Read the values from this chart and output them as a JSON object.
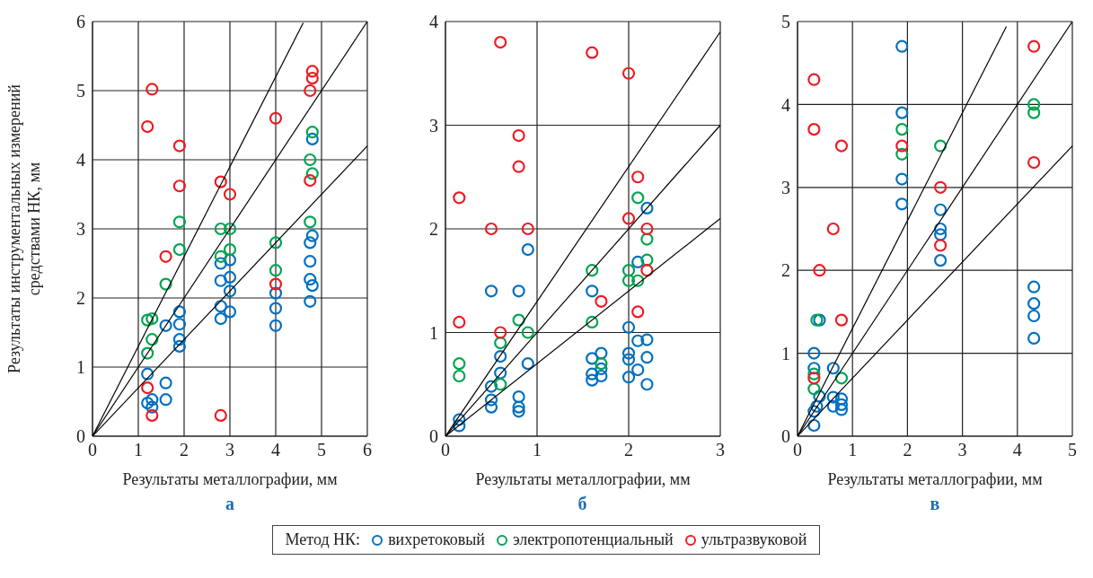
{
  "chart_data": [
    {
      "type": "scatter",
      "title": "а",
      "xlabel": "Результаты металлографии, мм",
      "ylabel": "Результаты инструментальных измерений средствами НК, мм",
      "xlim": [
        0,
        6
      ],
      "ylim": [
        0,
        6
      ],
      "xticks": [
        0,
        1,
        2,
        3,
        4,
        5,
        6
      ],
      "yticks": [
        0,
        1,
        2,
        3,
        4,
        5,
        6
      ],
      "grid": true,
      "legend": false,
      "series": [
        {
          "color": "#0070c0",
          "marker": "circle",
          "x": [
            4.8,
            4.8,
            4.75,
            4.75,
            4.75,
            4.8,
            4.75,
            2.8,
            3.0,
            2.8,
            3.0,
            3.0,
            2.8,
            3.0,
            2.8,
            4.0,
            4.0,
            4.0,
            1.9,
            1.9,
            1.6,
            1.9,
            1.9,
            1.2,
            1.6,
            1.2,
            1.3,
            1.3,
            1.6
          ],
          "values": [
            4.3,
            2.9,
            2.8,
            2.53,
            2.27,
            2.18,
            1.95,
            2.5,
            2.55,
            2.25,
            2.3,
            2.1,
            1.88,
            1.8,
            1.7,
            2.07,
            1.85,
            1.6,
            1.8,
            1.62,
            1.6,
            1.4,
            1.3,
            0.9,
            0.77,
            0.48,
            0.53,
            0.42,
            0.53
          ]
        },
        {
          "color": "#00a550",
          "marker": "circle",
          "x": [
            4.8,
            4.75,
            4.8,
            4.75,
            1.9,
            1.9,
            2.8,
            3.0,
            3.0,
            2.8,
            4.0,
            4.0,
            1.6,
            1.2,
            1.3,
            1.3,
            1.2
          ],
          "values": [
            4.4,
            4.0,
            3.8,
            3.1,
            3.1,
            2.7,
            3.0,
            3.0,
            2.7,
            2.6,
            2.8,
            2.4,
            2.2,
            1.68,
            1.7,
            1.4,
            1.2
          ]
        },
        {
          "color": "#ed1c24",
          "marker": "circle",
          "x": [
            1.3,
            1.2,
            1.9,
            1.9,
            2.8,
            3.0,
            4.0,
            4.8,
            4.8,
            4.75,
            4.75,
            1.6,
            4.0,
            1.2,
            1.3,
            2.8
          ],
          "values": [
            5.02,
            4.48,
            4.2,
            3.62,
            3.68,
            3.5,
            4.6,
            5.28,
            5.18,
            5.0,
            3.7,
            2.6,
            2.2,
            0.7,
            0.3,
            0.3
          ]
        },
        {
          "type": "line",
          "color": "#000000",
          "x": [
            0,
            4.6
          ],
          "values": [
            0,
            5.98
          ]
        },
        {
          "type": "line",
          "color": "#000000",
          "x": [
            0,
            6
          ],
          "values": [
            0,
            6
          ]
        },
        {
          "type": "line",
          "color": "#000000",
          "x": [
            0,
            6
          ],
          "values": [
            0,
            4.2
          ]
        }
      ]
    },
    {
      "type": "scatter",
      "title": "б",
      "xlabel": "Результаты металлографии, мм",
      "xlim": [
        0,
        3
      ],
      "ylim": [
        0,
        4
      ],
      "xticks": [
        0,
        1,
        2,
        3
      ],
      "yticks": [
        0,
        1,
        2,
        3,
        4
      ],
      "grid": true,
      "legend": "bottom",
      "legend_title": "Метод НК:",
      "series": [
        {
          "name": "вихретоковый",
          "color": "#0070c0",
          "marker": "circle",
          "x": [
            2.2,
            0.9,
            0.5,
            0.8,
            1.6,
            2.1,
            2.0,
            2.1,
            2.2,
            2.0,
            2.0,
            2.2,
            2.1,
            2.0,
            2.2,
            1.6,
            1.7,
            1.7,
            1.6,
            1.7,
            1.6,
            0.9,
            0.6,
            0.6,
            0.5,
            0.5,
            0.5,
            0.8,
            0.8,
            0.8,
            0.15,
            0.15
          ],
          "values": [
            2.2,
            1.8,
            1.4,
            1.4,
            1.4,
            1.68,
            1.05,
            0.92,
            0.93,
            0.8,
            0.74,
            0.76,
            0.64,
            0.57,
            0.5,
            0.75,
            0.8,
            0.65,
            0.6,
            0.58,
            0.54,
            0.7,
            0.77,
            0.61,
            0.48,
            0.35,
            0.28,
            0.38,
            0.28,
            0.24,
            0.16,
            0.1
          ]
        },
        {
          "name": "электропотенциальный",
          "color": "#00a550",
          "marker": "circle",
          "x": [
            2.1,
            2.2,
            2.2,
            2.0,
            2.0,
            2.1,
            1.6,
            1.6,
            0.8,
            0.9,
            0.6,
            0.6,
            0.15,
            0.15,
            1.7
          ],
          "values": [
            2.3,
            1.9,
            1.7,
            1.6,
            1.5,
            1.5,
            1.6,
            1.1,
            1.12,
            1.0,
            0.9,
            0.5,
            0.7,
            0.58,
            0.7
          ]
        },
        {
          "name": "ультразвуковой",
          "color": "#ed1c24",
          "marker": "circle",
          "x": [
            0.6,
            1.6,
            2.0,
            0.8,
            0.8,
            0.15,
            0.5,
            0.9,
            0.15,
            0.6,
            2.1,
            2.0,
            2.2,
            2.2,
            1.7,
            2.1
          ],
          "values": [
            3.8,
            3.7,
            3.5,
            2.9,
            2.6,
            2.3,
            2.0,
            2.0,
            1.1,
            1.0,
            2.5,
            2.1,
            2.0,
            1.6,
            1.3,
            1.2
          ]
        },
        {
          "type": "line",
          "color": "#000000",
          "x": [
            0,
            3
          ],
          "values": [
            0,
            3.9
          ]
        },
        {
          "type": "line",
          "color": "#000000",
          "x": [
            0,
            3
          ],
          "values": [
            0,
            3
          ]
        },
        {
          "type": "line",
          "color": "#000000",
          "x": [
            0,
            3
          ],
          "values": [
            0,
            2.1
          ]
        }
      ]
    },
    {
      "type": "scatter",
      "title": "в",
      "xlabel": "Результаты металлографии, мм",
      "xlim": [
        0,
        5
      ],
      "ylim": [
        0,
        5
      ],
      "xticks": [
        0,
        1,
        2,
        3,
        4,
        5
      ],
      "yticks": [
        0,
        1,
        2,
        3,
        4,
        5
      ],
      "grid": true,
      "legend": false,
      "series": [
        {
          "color": "#0070c0",
          "marker": "circle",
          "x": [
            1.9,
            1.9,
            1.9,
            1.9,
            2.6,
            2.6,
            2.6,
            2.6,
            4.3,
            4.3,
            4.3,
            4.3,
            0.4,
            0.3,
            0.3,
            0.65,
            0.4,
            0.65,
            0.8,
            0.35,
            0.65,
            0.8,
            0.8,
            0.3,
            0.3
          ],
          "values": [
            4.7,
            3.9,
            3.1,
            2.8,
            2.73,
            2.5,
            2.43,
            2.12,
            1.8,
            1.6,
            1.45,
            1.18,
            1.4,
            1.0,
            0.82,
            0.82,
            0.48,
            0.47,
            0.45,
            0.36,
            0.36,
            0.38,
            0.32,
            0.3,
            0.13
          ]
        },
        {
          "color": "#00a550",
          "marker": "circle",
          "x": [
            1.9,
            1.9,
            2.6,
            4.3,
            4.3,
            0.35,
            0.3,
            0.3,
            0.8
          ],
          "values": [
            3.7,
            3.4,
            3.5,
            4.0,
            3.9,
            1.4,
            0.75,
            0.57,
            0.7
          ]
        },
        {
          "color": "#ed1c24",
          "marker": "circle",
          "x": [
            0.3,
            0.3,
            0.8,
            0.65,
            0.4,
            0.8,
            0.3,
            1.9,
            2.6,
            2.6,
            4.3,
            4.3
          ],
          "values": [
            4.3,
            3.7,
            3.5,
            2.5,
            2.0,
            1.4,
            0.7,
            3.5,
            3.0,
            2.3,
            4.7,
            3.3
          ]
        },
        {
          "type": "line",
          "color": "#000000",
          "x": [
            0,
            3.8
          ],
          "values": [
            0,
            4.94
          ]
        },
        {
          "type": "line",
          "color": "#000000",
          "x": [
            0,
            5
          ],
          "values": [
            0,
            5
          ]
        },
        {
          "type": "line",
          "color": "#000000",
          "x": [
            0,
            5
          ],
          "values": [
            0,
            3.5
          ]
        }
      ]
    }
  ]
}
